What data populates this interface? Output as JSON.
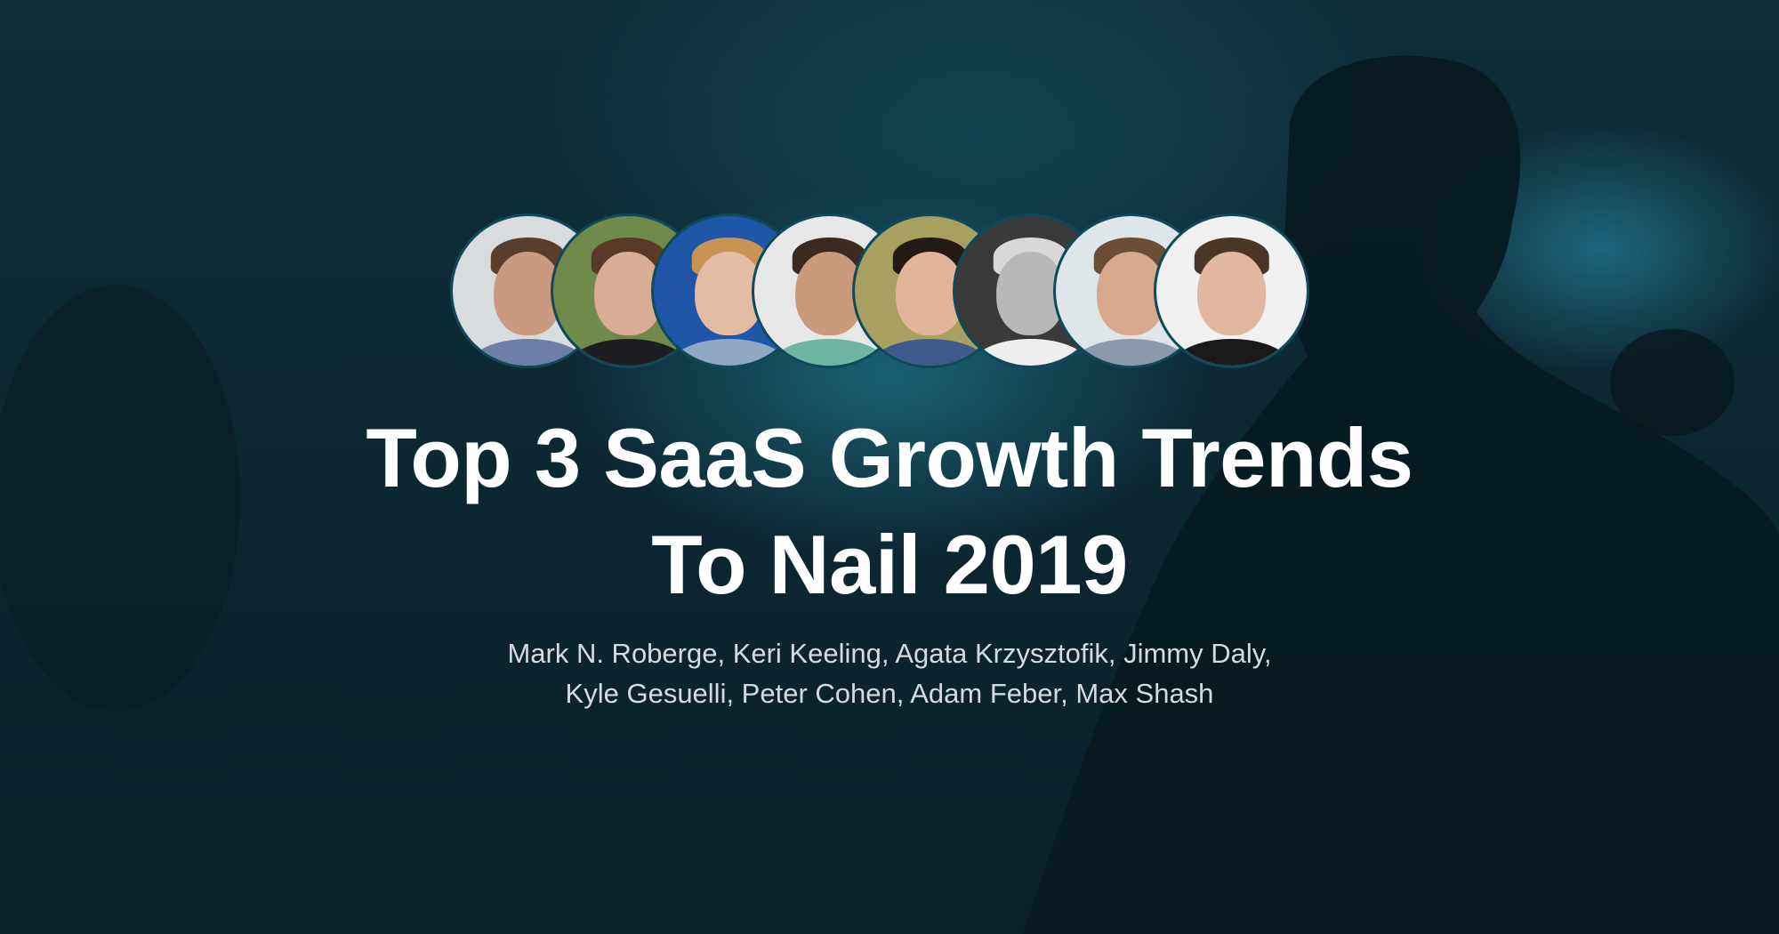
{
  "title": {
    "line1": "Top 3 SaaS Growth Trends",
    "line2": "To Nail 2019"
  },
  "authors": {
    "line1": "Mark N. Roberge, Keri Keeling, Agata Krzysztofik, Jimmy Daly,",
    "line2": "Kyle Gesuelli, Peter Cohen, Adam Feber, Max Shash"
  },
  "speakers": [
    {
      "name": "Mark N. Roberge",
      "bg": "#d9dcdf",
      "skin": "#c99a80",
      "hair": "#5a3d2a",
      "shirt": "#6d7fa8"
    },
    {
      "name": "Keri Keeling",
      "bg": "#6f8a4a",
      "skin": "#d8ad93",
      "hair": "#5a3a26",
      "shirt": "#1e1e22"
    },
    {
      "name": "Agata Krzysztofik",
      "bg": "#1f56a8",
      "skin": "#e3bca3",
      "hair": "#c79456",
      "shirt": "#8fa9c4"
    },
    {
      "name": "Jimmy Daly",
      "bg": "#e7e7e7",
      "skin": "#c99a7c",
      "hair": "#3a2a20",
      "shirt": "#6fb6a2"
    },
    {
      "name": "Kyle Gesuelli",
      "bg": "#a8a060",
      "skin": "#e2b59a",
      "hair": "#231a16",
      "shirt": "#3d5a8a"
    },
    {
      "name": "Peter Cohen",
      "bg": "#3a3a3a",
      "skin": "#b8b8b8",
      "hair": "#d8d8d8",
      "shirt": "#efefef"
    },
    {
      "name": "Adam Feber",
      "bg": "#dfe6ea",
      "skin": "#d8a88c",
      "hair": "#6b4e36",
      "shirt": "#8a9aaa"
    },
    {
      "name": "Max Shash",
      "bg": "#f1f1f1",
      "skin": "#e2b7a0",
      "hair": "#4a3626",
      "shirt": "#1a1a1a"
    }
  ],
  "colors": {
    "title": "#ffffff",
    "authors": "#d4dadd",
    "background": "#0b252d"
  }
}
